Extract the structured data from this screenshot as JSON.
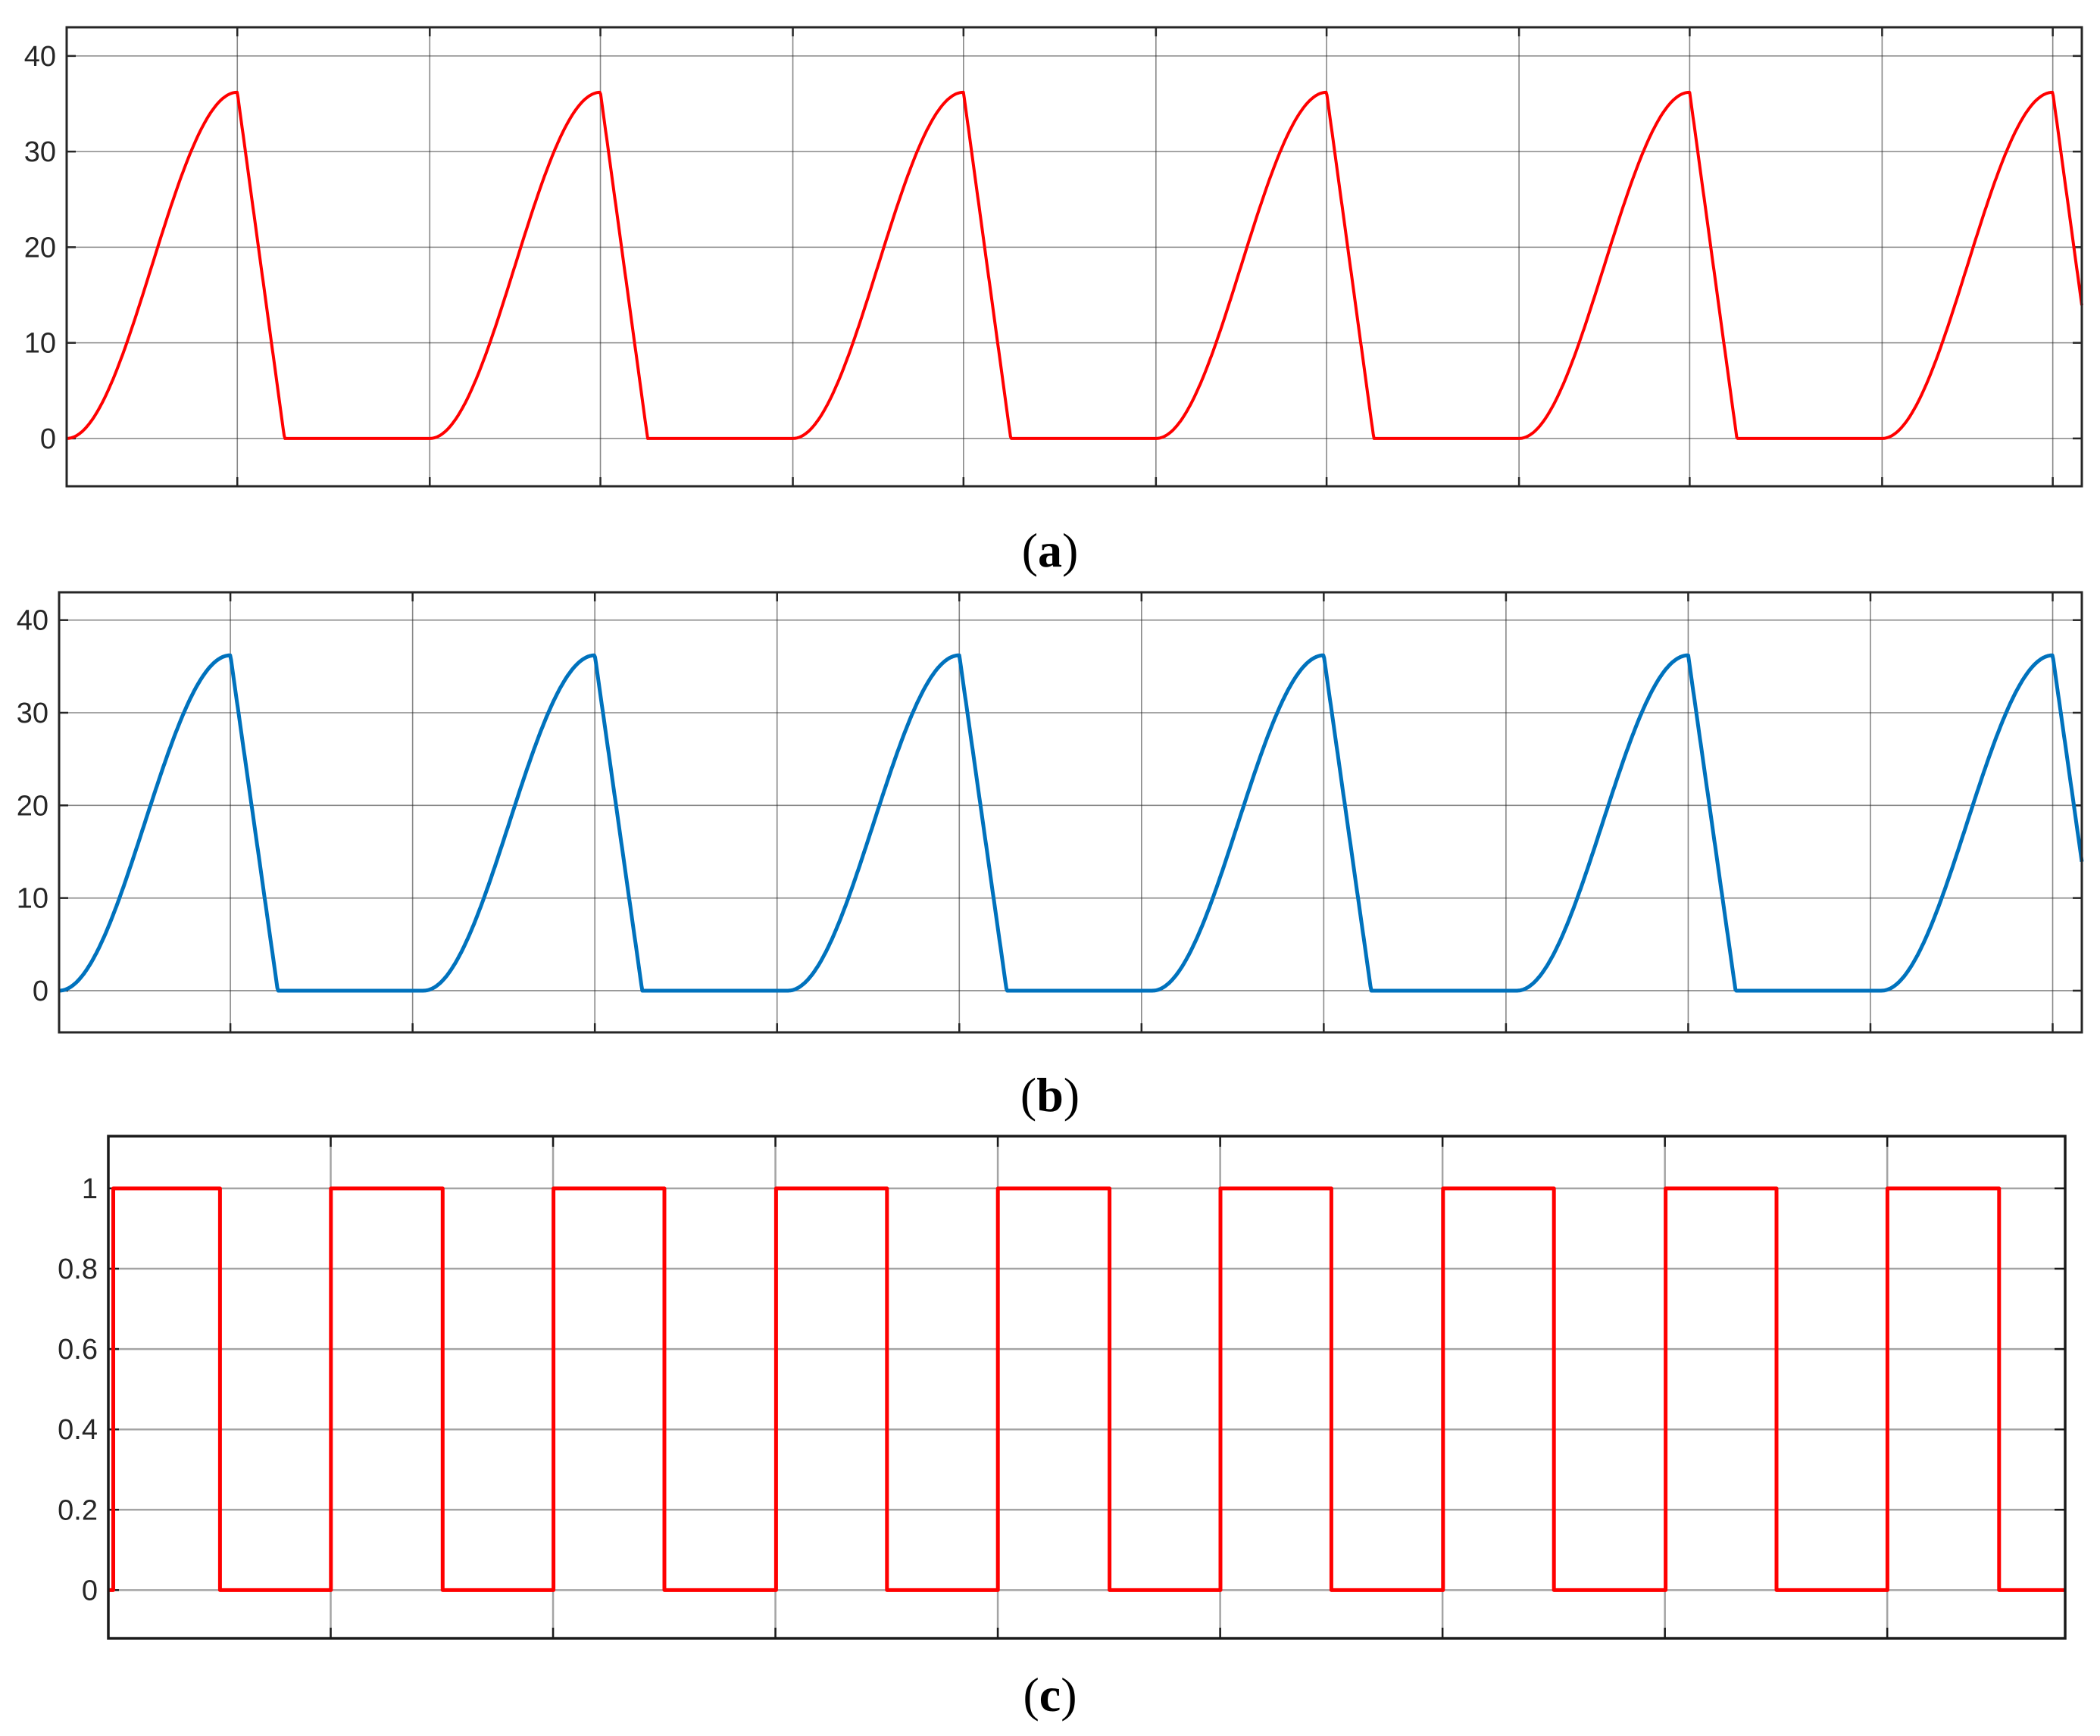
{
  "captions": [
    {
      "open": "(",
      "letter": "a",
      "close": ")"
    },
    {
      "open": "(",
      "letter": "b",
      "close": ")"
    },
    {
      "open": "(",
      "letter": "c",
      "close": ")"
    }
  ],
  "chart_data": [
    {
      "type": "line",
      "title": "",
      "xlabel": "",
      "ylabel": "",
      "ylim": [
        -5,
        43
      ],
      "yticks": [
        0,
        10,
        20,
        30,
        40
      ],
      "ytick_labels": [
        "0",
        "10",
        "20",
        "30",
        "40"
      ],
      "xlim": [
        0,
        5.55
      ],
      "xtick_positions": [
        0.47,
        1.0,
        1.47,
        2.0,
        2.47,
        3.0,
        3.47,
        4.0,
        4.47,
        5.0,
        5.47
      ],
      "grid": true,
      "color": "#ff0000",
      "waveform": {
        "kind": "rectified-pulse",
        "period": 1.0,
        "peak": 36.2,
        "rise_end": 0.47,
        "fall_end": 0.6
      },
      "series": [
        {
          "x": [
            0,
            0.1,
            0.2,
            0.3,
            0.4,
            0.47,
            0.6,
            1.0,
            1.1,
            1.2,
            1.3,
            1.4,
            1.47,
            1.6,
            2.0,
            2.1,
            2.2,
            2.3,
            2.4,
            2.47,
            2.6,
            3.0,
            3.1,
            3.2,
            3.3,
            3.4,
            3.47,
            3.6,
            4.0,
            4.1,
            4.2,
            4.3,
            4.4,
            4.47,
            4.6,
            5.0,
            5.1,
            5.2,
            5.3,
            5.4,
            5.47,
            5.55
          ],
          "y": [
            0,
            5.6,
            18.1,
            30.6,
            36.2,
            36.2,
            0,
            0,
            5.6,
            18.1,
            30.6,
            36.2,
            36.2,
            0,
            0,
            5.6,
            18.1,
            30.6,
            36.2,
            36.2,
            0,
            0,
            5.6,
            18.1,
            30.6,
            36.2,
            36.2,
            0,
            0,
            5.6,
            18.1,
            30.6,
            36.2,
            36.2,
            0,
            0,
            5.6,
            18.1,
            30.6,
            36.2,
            36.2,
            14
          ]
        }
      ]
    },
    {
      "type": "line",
      "title": "",
      "xlabel": "",
      "ylabel": "",
      "ylim": [
        -4.5,
        43
      ],
      "yticks": [
        0,
        10,
        20,
        30,
        40
      ],
      "ytick_labels": [
        "0",
        "10",
        "20",
        "30",
        "40"
      ],
      "xlim": [
        0,
        5.55
      ],
      "xtick_positions": [
        0.47,
        0.97,
        1.47,
        1.97,
        2.47,
        2.97,
        3.47,
        3.97,
        4.47,
        4.97,
        5.47
      ],
      "grid": true,
      "color": "#0072bd",
      "waveform": {
        "kind": "rectified-pulse",
        "period": 1.0,
        "peak": 36.2,
        "rise_end": 0.47,
        "fall_end": 0.6
      },
      "series": [
        {
          "x": [
            0,
            0.1,
            0.2,
            0.3,
            0.4,
            0.47,
            0.6,
            1.0,
            1.1,
            1.2,
            1.3,
            1.4,
            1.47,
            1.6,
            2.0,
            2.1,
            2.2,
            2.3,
            2.4,
            2.47,
            2.6,
            3.0,
            3.1,
            3.2,
            3.3,
            3.4,
            3.47,
            3.6,
            4.0,
            4.1,
            4.2,
            4.3,
            4.4,
            4.47,
            4.6,
            5.0,
            5.1,
            5.2,
            5.3,
            5.4,
            5.47,
            5.55
          ],
          "y": [
            0,
            5.6,
            18.1,
            30.6,
            36.2,
            36.2,
            0,
            0,
            5.6,
            18.1,
            30.6,
            36.2,
            36.2,
            0,
            0,
            5.6,
            18.1,
            30.6,
            36.2,
            36.2,
            0,
            0,
            5.6,
            18.1,
            30.6,
            36.2,
            36.2,
            0,
            0,
            5.6,
            18.1,
            30.6,
            36.2,
            36.2,
            0,
            0,
            5.6,
            18.1,
            30.6,
            36.2,
            36.2,
            14
          ]
        }
      ]
    },
    {
      "type": "line",
      "title": "",
      "xlabel": "",
      "ylabel": "",
      "ylim": [
        -0.12,
        1.13
      ],
      "yticks": [
        0,
        0.2,
        0.4,
        0.6,
        0.8,
        1
      ],
      "ytick_labels": [
        "0",
        "0.2",
        "0.4",
        "0.6",
        "0.8",
        "1"
      ],
      "xlim": [
        0,
        8.8
      ],
      "xtick_positions": [
        0,
        1,
        2,
        3,
        4,
        5,
        6,
        7,
        8
      ],
      "grid": true,
      "color": "#ff0000",
      "waveform": {
        "kind": "square",
        "period": 1.0,
        "high": 1,
        "low": 0,
        "duty": 0.5
      },
      "series": [
        {
          "x": [
            0,
            0.02,
            0.02,
            0.5,
            0.5,
            1,
            1,
            1.5,
            1.5,
            2,
            2,
            2.5,
            2.5,
            3,
            3,
            3.5,
            3.5,
            4,
            4,
            4.5,
            4.5,
            5,
            5,
            5.5,
            5.5,
            6,
            6,
            6.5,
            6.5,
            7,
            7,
            7.5,
            7.5,
            8,
            8,
            8.5,
            8.5,
            8.8
          ],
          "y": [
            0,
            0,
            1,
            1,
            0,
            0,
            1,
            1,
            0,
            0,
            1,
            1,
            0,
            0,
            1,
            1,
            0,
            0,
            1,
            1,
            0,
            0,
            1,
            1,
            0,
            0,
            1,
            1,
            0,
            0,
            1,
            1,
            0,
            0,
            1,
            1,
            0,
            0
          ]
        }
      ]
    }
  ]
}
